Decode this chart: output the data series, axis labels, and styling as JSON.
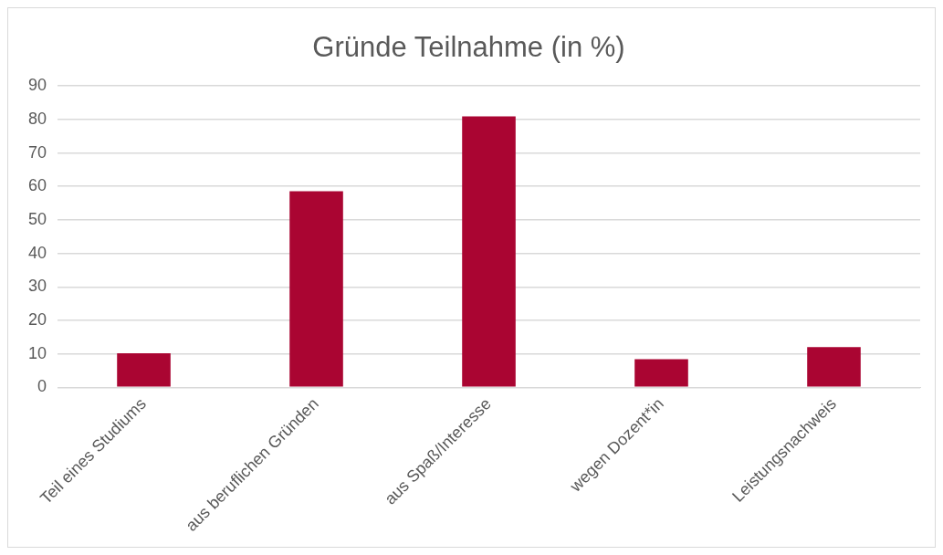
{
  "chart_data": {
    "type": "bar",
    "title": "Gründe Teilnahme (in %)",
    "categories": [
      "Teil eines Studiums",
      "aus beruflichen Gründen",
      "aus Spaß/Interesse",
      "wegen Dozent*in",
      "Leistungsnachweis"
    ],
    "values": [
      10.2,
      58.6,
      80.9,
      8.4,
      12.0
    ],
    "color": "#aa0532",
    "ylim": [
      0,
      90
    ],
    "yticks": [
      0,
      10,
      20,
      30,
      40,
      50,
      60,
      70,
      80,
      90
    ],
    "grid": "y",
    "legend": false
  }
}
